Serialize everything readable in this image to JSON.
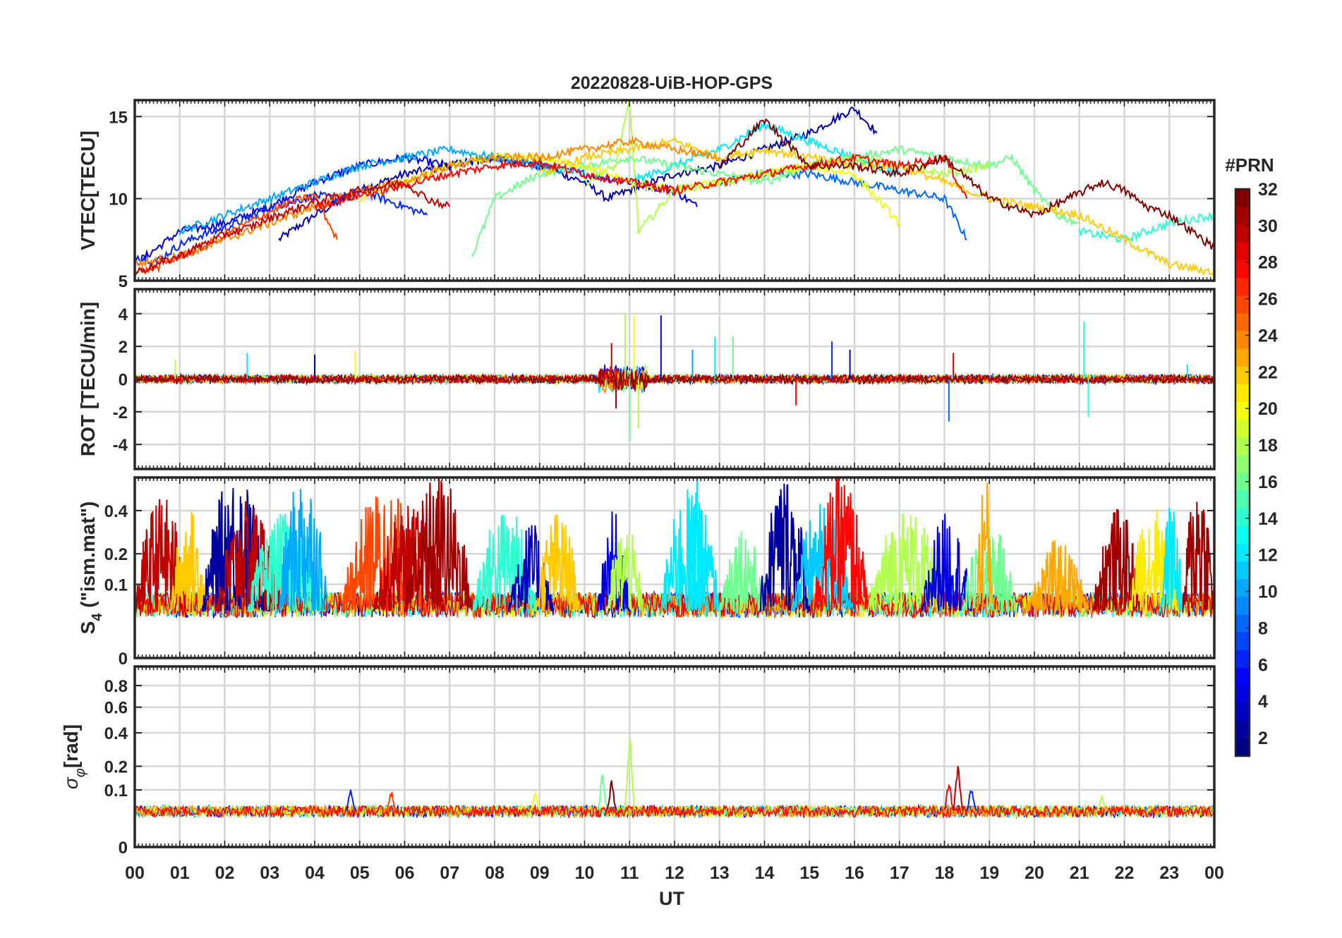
{
  "title": "20220828-UiB-HOP-GPS",
  "xlabel": "UT",
  "x_ticks": [
    "00",
    "01",
    "02",
    "03",
    "04",
    "05",
    "06",
    "07",
    "08",
    "09",
    "10",
    "11",
    "12",
    "13",
    "14",
    "15",
    "16",
    "17",
    "18",
    "19",
    "20",
    "21",
    "22",
    "23",
    "00"
  ],
  "colorbar": {
    "title": "#PRN",
    "colormap": "jet",
    "range": [
      1,
      32
    ],
    "ticks": [
      "2",
      "4",
      "6",
      "8",
      "10",
      "12",
      "14",
      "16",
      "18",
      "20",
      "22",
      "24",
      "26",
      "28",
      "30",
      "32"
    ]
  },
  "chart_data": [
    {
      "id": "vtec",
      "type": "line",
      "ylabel": "VTEC[TECU]",
      "x_unit": "UT hours",
      "xlim": [
        0,
        24
      ],
      "ylim": [
        5,
        16
      ],
      "yticks": [
        5,
        10,
        15
      ],
      "grid": true,
      "series_note_prn": "colour by PRN via colorbar",
      "series": [
        {
          "prn": 2,
          "x": [
            3.2,
            4,
            5,
            6,
            7,
            8,
            9,
            10,
            10.5,
            11,
            12,
            13,
            14,
            15,
            16,
            16.5
          ],
          "y": [
            7.5,
            9,
            10.5,
            11.5,
            12,
            12.5,
            12,
            11,
            10,
            10.5,
            11.5,
            12,
            13,
            14,
            15.5,
            14
          ]
        },
        {
          "prn": 4,
          "x": [
            0,
            0.5,
            1,
            2,
            3,
            4,
            5,
            6,
            7,
            8,
            9,
            10,
            11,
            12,
            12.5
          ],
          "y": [
            6,
            7,
            8,
            8.5,
            9.5,
            11,
            12,
            12.5,
            12,
            12.5,
            12,
            11.5,
            11,
            10.5,
            9.5
          ]
        },
        {
          "prn": 6,
          "x": [
            0,
            0.5,
            1,
            1.5,
            2,
            2.5,
            3,
            3.5,
            4,
            4.5,
            5,
            6,
            6.5
          ],
          "y": [
            6.5,
            6.2,
            7.2,
            7.8,
            8.2,
            8.8,
            9.5,
            9.8,
            10.2,
            10,
            10.5,
            9.5,
            9
          ]
        },
        {
          "prn": 8,
          "x": [
            13,
            14,
            15,
            16,
            17,
            18,
            18.5
          ],
          "y": [
            11,
            11.5,
            11.5,
            11,
            10.5,
            10,
            7.5
          ]
        },
        {
          "prn": 10,
          "x": [
            1,
            2,
            3,
            4,
            5,
            6,
            7,
            8,
            9,
            10
          ],
          "y": [
            8,
            9,
            10,
            11,
            12,
            12.5,
            13,
            12.5,
            12,
            11.5
          ]
        },
        {
          "prn": 12,
          "x": [
            11,
            12,
            13,
            14,
            15,
            16,
            17
          ],
          "y": [
            11,
            12,
            13,
            14.5,
            13.5,
            12.5,
            11.5
          ]
        },
        {
          "prn": 14,
          "x": [
            21,
            22,
            23,
            24
          ],
          "y": [
            8,
            7.5,
            8.5,
            9
          ]
        },
        {
          "prn": 16,
          "x": [
            7.5,
            8,
            9,
            10,
            11,
            12,
            13,
            14,
            15,
            16,
            17,
            18,
            19,
            19.5,
            20,
            20.5,
            21
          ],
          "y": [
            6.5,
            10,
            11.5,
            12,
            12.5,
            12,
            11.5,
            11,
            12,
            12.5,
            13,
            12.5,
            12,
            12.5,
            10.5,
            9,
            8.5
          ]
        },
        {
          "prn": 18,
          "x": [
            10,
            10.7,
            11,
            11.2,
            12,
            13,
            14,
            15,
            16,
            17,
            18,
            19
          ],
          "y": [
            11,
            12,
            16,
            8,
            10.5,
            11,
            11.5,
            12,
            12.5,
            12,
            11.5,
            12
          ]
        },
        {
          "prn": 20,
          "x": [
            5,
            6,
            7,
            8,
            9,
            10,
            11,
            12,
            13,
            14,
            15,
            16,
            16.5,
            17
          ],
          "y": [
            10,
            11,
            12,
            12.5,
            12.5,
            12,
            11,
            10.5,
            11,
            11.5,
            12,
            11.5,
            10,
            8.5
          ]
        },
        {
          "prn": 22,
          "x": [
            9,
            10,
            11,
            12,
            13,
            14,
            15,
            16,
            17,
            18,
            19,
            20,
            21,
            22,
            23,
            24
          ],
          "y": [
            11.5,
            12.5,
            13,
            13.5,
            12.5,
            13,
            12.5,
            12,
            12,
            11,
            10,
            9.5,
            9,
            7.5,
            6,
            5.5
          ]
        },
        {
          "prn": 24,
          "x": [
            0,
            1,
            2,
            3,
            4,
            5,
            6,
            7,
            8,
            9,
            10,
            11,
            12,
            13
          ],
          "y": [
            6,
            6.5,
            7.5,
            8.5,
            9.5,
            10.5,
            11,
            12,
            12.5,
            12.5,
            13,
            13.5,
            13,
            12.5
          ]
        },
        {
          "prn": 26,
          "x": [
            0,
            0.5,
            1,
            1.5,
            2,
            2.5,
            3,
            3.5,
            4,
            4.5
          ],
          "y": [
            5.5,
            5.8,
            6.5,
            7,
            7.8,
            8.5,
            9.2,
            9.8,
            10.2,
            7.5
          ]
        },
        {
          "prn": 28,
          "x": [
            4,
            5,
            6,
            7,
            8,
            9,
            10,
            11,
            12,
            13,
            14,
            15,
            16,
            17,
            18,
            18.5
          ],
          "y": [
            9.5,
            10.2,
            10.8,
            11.5,
            12,
            12.2,
            11.5,
            11,
            10.5,
            11,
            11.5,
            12,
            12.5,
            12,
            12.5,
            10
          ]
        },
        {
          "prn": 30,
          "x": [
            0,
            0.5,
            1,
            1.5,
            2,
            2.5,
            3,
            3.5,
            4,
            5,
            6,
            6.5,
            7
          ],
          "y": [
            5.5,
            6,
            6.5,
            7.2,
            7.8,
            8.2,
            8.8,
            9.3,
            9.8,
            10.5,
            11,
            10,
            9.5
          ]
        },
        {
          "prn": 32,
          "x": [
            13,
            14,
            15,
            16,
            17,
            18,
            19,
            20,
            21.5,
            22,
            22.5,
            23,
            23.5,
            24
          ],
          "y": [
            12,
            14.8,
            12,
            12,
            11.5,
            12.5,
            10,
            9,
            11,
            10.5,
            9.5,
            9,
            8,
            7
          ]
        }
      ]
    },
    {
      "id": "rot",
      "type": "line",
      "ylabel": "ROT [TECU/min]",
      "x_unit": "UT hours",
      "xlim": [
        0,
        24
      ],
      "ylim": [
        -5.5,
        5.5
      ],
      "yticks": [
        -4,
        -2,
        0,
        2,
        4
      ],
      "grid": true,
      "baseline": 0,
      "typical_noise": 0.3,
      "spikes": [
        {
          "x": 0.9,
          "y": 1.2,
          "prn": 18
        },
        {
          "x": 2.5,
          "y": 1.6,
          "prn": 12
        },
        {
          "x": 4.0,
          "y": 1.5,
          "prn": 4
        },
        {
          "x": 4.9,
          "y": 1.7,
          "prn": 20
        },
        {
          "x": 10.6,
          "y": 2.2,
          "prn": 30
        },
        {
          "x": 10.7,
          "y": -1.8,
          "prn": 32
        },
        {
          "x": 10.9,
          "y": 4.0,
          "prn": 18
        },
        {
          "x": 11.0,
          "y": -3.8,
          "prn": 16
        },
        {
          "x": 11.1,
          "y": 3.9,
          "prn": 20
        },
        {
          "x": 11.2,
          "y": -3.0,
          "prn": 18
        },
        {
          "x": 11.7,
          "y": 3.9,
          "prn": 4
        },
        {
          "x": 12.4,
          "y": 1.8,
          "prn": 10
        },
        {
          "x": 12.9,
          "y": 2.6,
          "prn": 12
        },
        {
          "x": 13.3,
          "y": 2.6,
          "prn": 16
        },
        {
          "x": 14.7,
          "y": -1.6,
          "prn": 28
        },
        {
          "x": 15.5,
          "y": 2.3,
          "prn": 6
        },
        {
          "x": 15.9,
          "y": 1.8,
          "prn": 4
        },
        {
          "x": 18.1,
          "y": -2.6,
          "prn": 8
        },
        {
          "x": 18.2,
          "y": 1.6,
          "prn": 30
        },
        {
          "x": 21.1,
          "y": 3.5,
          "prn": 14
        },
        {
          "x": 21.2,
          "y": -2.3,
          "prn": 14
        },
        {
          "x": 23.4,
          "y": 0.9,
          "prn": 12
        }
      ]
    },
    {
      "id": "s4",
      "type": "line",
      "ylabel": "S4 (\"ism.mat\")",
      "ylabel_main": "S",
      "ylabel_sub": "4",
      "ylabel_rest": " (\"ism.mat\")",
      "x_unit": "UT hours",
      "xlim": [
        0,
        24
      ],
      "ylim": [
        0,
        0.6
      ],
      "yticks": [
        0,
        0.1,
        0.2,
        0.4
      ],
      "grid": true,
      "scale": "sqrt",
      "bursts": [
        {
          "x0": 0.0,
          "x1": 1.2,
          "peak": 0.45,
          "prn": 30
        },
        {
          "x0": 0.8,
          "x1": 1.6,
          "peak": 0.38,
          "prn": 22
        },
        {
          "x0": 1.5,
          "x1": 3.0,
          "peak": 0.6,
          "prn": 2
        },
        {
          "x0": 1.8,
          "x1": 3.3,
          "peak": 0.42,
          "prn": 30
        },
        {
          "x0": 2.5,
          "x1": 4.2,
          "peak": 0.35,
          "prn": 14
        },
        {
          "x0": 3.2,
          "x1": 4.3,
          "peak": 0.6,
          "prn": 10
        },
        {
          "x0": 4.6,
          "x1": 6.5,
          "peak": 0.5,
          "prn": 26
        },
        {
          "x0": 5.3,
          "x1": 6.9,
          "peak": 0.4,
          "prn": 30
        },
        {
          "x0": 6.0,
          "x1": 7.5,
          "peak": 0.6,
          "prn": 31
        },
        {
          "x0": 7.5,
          "x1": 9.0,
          "peak": 0.38,
          "prn": 14
        },
        {
          "x0": 8.3,
          "x1": 9.3,
          "peak": 0.3,
          "prn": 3
        },
        {
          "x0": 8.9,
          "x1": 9.9,
          "peak": 0.36,
          "prn": 22
        },
        {
          "x0": 10.3,
          "x1": 11.0,
          "peak": 0.36,
          "prn": 4
        },
        {
          "x0": 10.5,
          "x1": 11.3,
          "peak": 0.3,
          "prn": 18
        },
        {
          "x0": 11.7,
          "x1": 13.0,
          "peak": 0.5,
          "prn": 12
        },
        {
          "x0": 12.3,
          "x1": 12.7,
          "peak": 0.6,
          "prn": 12
        },
        {
          "x0": 13.0,
          "x1": 14.0,
          "peak": 0.3,
          "prn": 16
        },
        {
          "x0": 13.9,
          "x1": 15.0,
          "peak": 0.6,
          "prn": 2
        },
        {
          "x0": 14.6,
          "x1": 16.0,
          "peak": 0.4,
          "prn": 11
        },
        {
          "x0": 15.1,
          "x1": 16.3,
          "peak": 0.6,
          "prn": 28
        },
        {
          "x0": 16.3,
          "x1": 18.0,
          "peak": 0.38,
          "prn": 18
        },
        {
          "x0": 17.5,
          "x1": 18.6,
          "peak": 0.35,
          "prn": 4
        },
        {
          "x0": 18.4,
          "x1": 19.6,
          "peak": 0.3,
          "prn": 16
        },
        {
          "x0": 18.7,
          "x1": 19.1,
          "peak": 0.6,
          "prn": 23
        },
        {
          "x0": 19.8,
          "x1": 21.2,
          "peak": 0.22,
          "prn": 23
        },
        {
          "x0": 21.3,
          "x1": 22.4,
          "peak": 0.38,
          "prn": 31
        },
        {
          "x0": 22.1,
          "x1": 23.2,
          "peak": 0.4,
          "prn": 21
        },
        {
          "x0": 22.8,
          "x1": 23.3,
          "peak": 0.42,
          "prn": 12
        },
        {
          "x0": 23.3,
          "x1": 24.0,
          "peak": 0.6,
          "prn": 31
        }
      ]
    },
    {
      "id": "sigma_phi",
      "type": "line",
      "ylabel": "σφ[rad]",
      "ylabel_main": "σ",
      "ylabel_sub": "φ",
      "ylabel_rest": "[rad]",
      "x_unit": "UT hours",
      "xlim": [
        0,
        24
      ],
      "ylim": [
        0,
        1
      ],
      "yticks": [
        0,
        0.1,
        0.2,
        0.4,
        0.6,
        0.8
      ],
      "grid": true,
      "scale": "sqrt",
      "baseline": 0.04,
      "spikes": [
        {
          "x": 4.8,
          "y": 0.11,
          "prn": 6
        },
        {
          "x": 5.7,
          "y": 0.1,
          "prn": 26
        },
        {
          "x": 8.9,
          "y": 0.1,
          "prn": 20
        },
        {
          "x": 10.4,
          "y": 0.17,
          "prn": 16
        },
        {
          "x": 10.6,
          "y": 0.14,
          "prn": 32
        },
        {
          "x": 11.0,
          "y": 0.4,
          "prn": 18
        },
        {
          "x": 18.1,
          "y": 0.14,
          "prn": 28
        },
        {
          "x": 18.3,
          "y": 0.22,
          "prn": 30
        },
        {
          "x": 18.6,
          "y": 0.12,
          "prn": 6
        },
        {
          "x": 21.5,
          "y": 0.08,
          "prn": 18
        }
      ]
    }
  ]
}
